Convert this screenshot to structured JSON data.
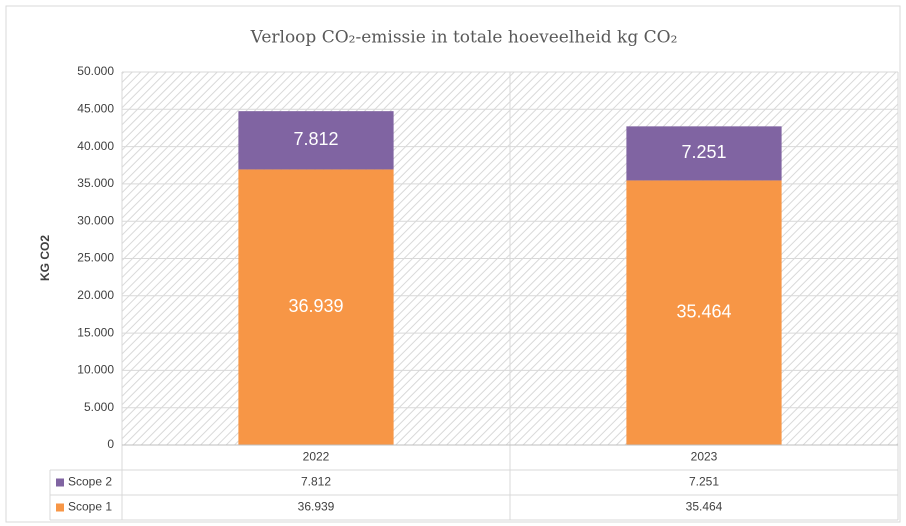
{
  "chart_data": {
    "type": "stacked_bar",
    "title": "Verloop CO₂-emissie in totale hoeveelheid kg CO₂",
    "y_label": "KG CO2",
    "categories": [
      "2022",
      "2023"
    ],
    "series": [
      {
        "name": "Scope 1",
        "color": "#f79646",
        "values": [
          36939,
          35464
        ],
        "value_labels": [
          "36.939",
          "35.464"
        ]
      },
      {
        "name": "Scope 2",
        "color": "#8064a2",
        "values": [
          7812,
          7251
        ],
        "value_labels": [
          "7.812",
          "7.251"
        ]
      }
    ],
    "ylim": [
      0,
      50000
    ],
    "yticks": [
      0,
      {
        "value": 5000,
        "label": "5.000"
      },
      {
        "value": 10000,
        "label": "10.000"
      },
      {
        "value": 15000,
        "label": "15.000"
      },
      {
        "value": 20000,
        "label": "20.000"
      },
      {
        "value": 25000,
        "label": "25.000"
      },
      {
        "value": 30000,
        "label": "30.000"
      },
      {
        "value": 35000,
        "label": "35.000"
      },
      {
        "value": 40000,
        "label": "40.000"
      },
      {
        "value": 45000,
        "label": "45.000"
      },
      {
        "value": 50000,
        "label": "50.000"
      }
    ],
    "grid": true
  }
}
